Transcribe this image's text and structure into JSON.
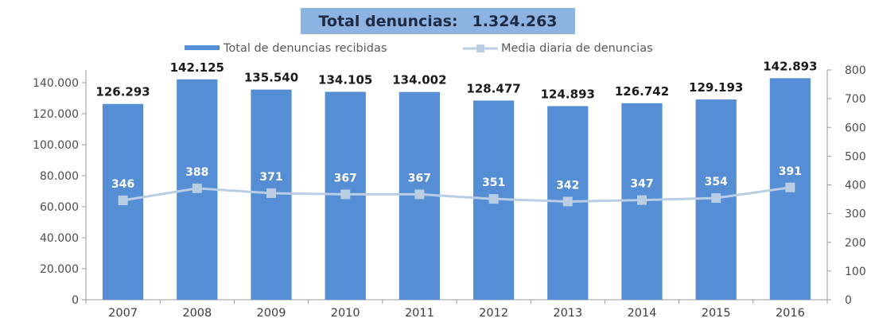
{
  "title": {
    "label": "Total denuncias:",
    "value": "1.324.263"
  },
  "colors": {
    "bar": "#558ed5",
    "line": "#b9cde5",
    "title_bg": "#8db3e2",
    "axis": "#9a9a9a"
  },
  "chart_data": {
    "type": "bar",
    "title": "Total denuncias: 1.324.263",
    "categories": [
      "2007",
      "2008",
      "2009",
      "2010",
      "2011",
      "2012",
      "2013",
      "2014",
      "2015",
      "2016"
    ],
    "series": [
      {
        "name": "Total de denuncias recibidas",
        "type": "bar",
        "axis": "left",
        "values": [
          126293,
          142125,
          135540,
          134105,
          134002,
          128477,
          124893,
          126742,
          129193,
          142893
        ],
        "labels": [
          "126.293",
          "142.125",
          "135.540",
          "134.105",
          "134.002",
          "128.477",
          "124.893",
          "126.742",
          "129.193",
          "142.893"
        ]
      },
      {
        "name": "Media diaria de denuncias",
        "type": "line",
        "axis": "right",
        "values": [
          346,
          388,
          371,
          367,
          367,
          351,
          342,
          347,
          354,
          391
        ],
        "labels": [
          "346",
          "388",
          "371",
          "367",
          "367",
          "351",
          "342",
          "347",
          "354",
          "391"
        ]
      }
    ],
    "y_left": {
      "ylim": [
        0,
        140000
      ],
      "ticks": [
        0,
        20000,
        40000,
        60000,
        80000,
        100000,
        120000,
        140000
      ],
      "tick_labels": [
        "0",
        "20.000",
        "40.000",
        "60.000",
        "80.000",
        "100.000",
        "120.000",
        "140.000"
      ]
    },
    "y_right": {
      "ylim": [
        0,
        800
      ],
      "ticks": [
        0,
        100,
        200,
        300,
        400,
        500,
        600,
        700,
        800
      ],
      "tick_labels": [
        "0",
        "100",
        "200",
        "300",
        "400",
        "500",
        "600",
        "700",
        "800"
      ]
    },
    "grid": false,
    "legend_position": "top"
  }
}
